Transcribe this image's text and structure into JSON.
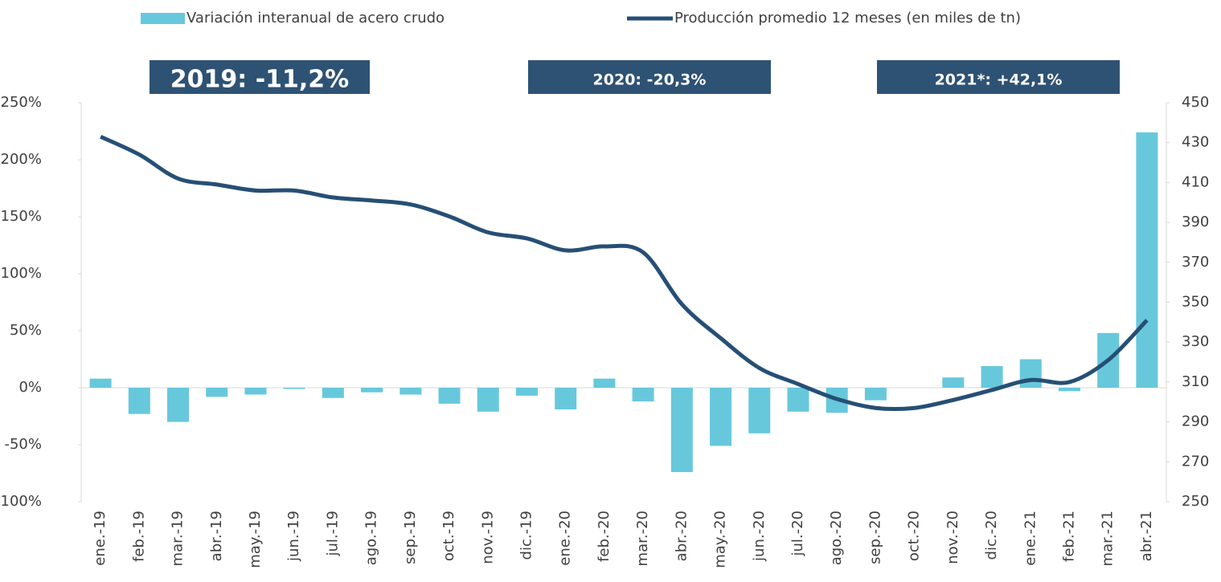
{
  "chart_data": {
    "type": "bar",
    "categories": [
      "ene.-19",
      "feb.-19",
      "mar.-19",
      "abr.-19",
      "may.-19",
      "jun.-19",
      "jul.-19",
      "ago.-19",
      "sep.-19",
      "oct.-19",
      "nov.-19",
      "dic.-19",
      "ene.-20",
      "feb.-20",
      "mar.-20",
      "abr.-20",
      "may.-20",
      "jun.-20",
      "jul.-20",
      "ago.-20",
      "sep.-20",
      "oct.-20",
      "nov.-20",
      "dic.-20",
      "ene.-21",
      "feb.-21",
      "mar.-21",
      "abr.-21"
    ],
    "series": [
      {
        "name": "Variación interanual de acero crudo",
        "type": "bar",
        "color": "#67c8dc",
        "values": [
          8,
          -23,
          -30,
          -8,
          -6,
          -1,
          -9,
          -4,
          -6,
          -14,
          -21,
          -7,
          -19,
          8,
          -12,
          -74,
          -51,
          -40,
          -21,
          -22,
          -11,
          0,
          9,
          19,
          25,
          -3,
          48,
          224
        ]
      },
      {
        "name": "Producción promedio 12 meses (en miles de tn)",
        "type": "line",
        "axis": "y2",
        "color": "#264f75",
        "values": [
          433,
          424,
          412,
          409,
          406,
          406,
          402.5,
          401,
          399,
          393,
          385,
          382,
          376,
          378,
          375,
          349,
          332,
          317,
          309,
          301.5,
          297,
          297,
          301,
          306,
          311,
          310,
          321,
          341
        ]
      }
    ],
    "ylim": [
      -100,
      250
    ],
    "yticks": [
      {
        "value": -100,
        "label": "-100%"
      },
      {
        "value": -50,
        "label": "-50%"
      },
      {
        "value": 0,
        "label": "0%"
      },
      {
        "value": 50,
        "label": "50%"
      },
      {
        "value": 100,
        "label": "100%"
      },
      {
        "value": 150,
        "label": "150%"
      },
      {
        "value": 200,
        "label": "200%"
      },
      {
        "value": 250,
        "label": "250%"
      }
    ],
    "y2lim": [
      250,
      450
    ],
    "y2ticks": [
      250,
      270,
      290,
      310,
      330,
      350,
      370,
      390,
      410,
      430,
      450
    ],
    "annotations": [
      "2019: -11,2%",
      "2020: -20,3%",
      "2021*: +42,1%"
    ],
    "legend": "top"
  }
}
